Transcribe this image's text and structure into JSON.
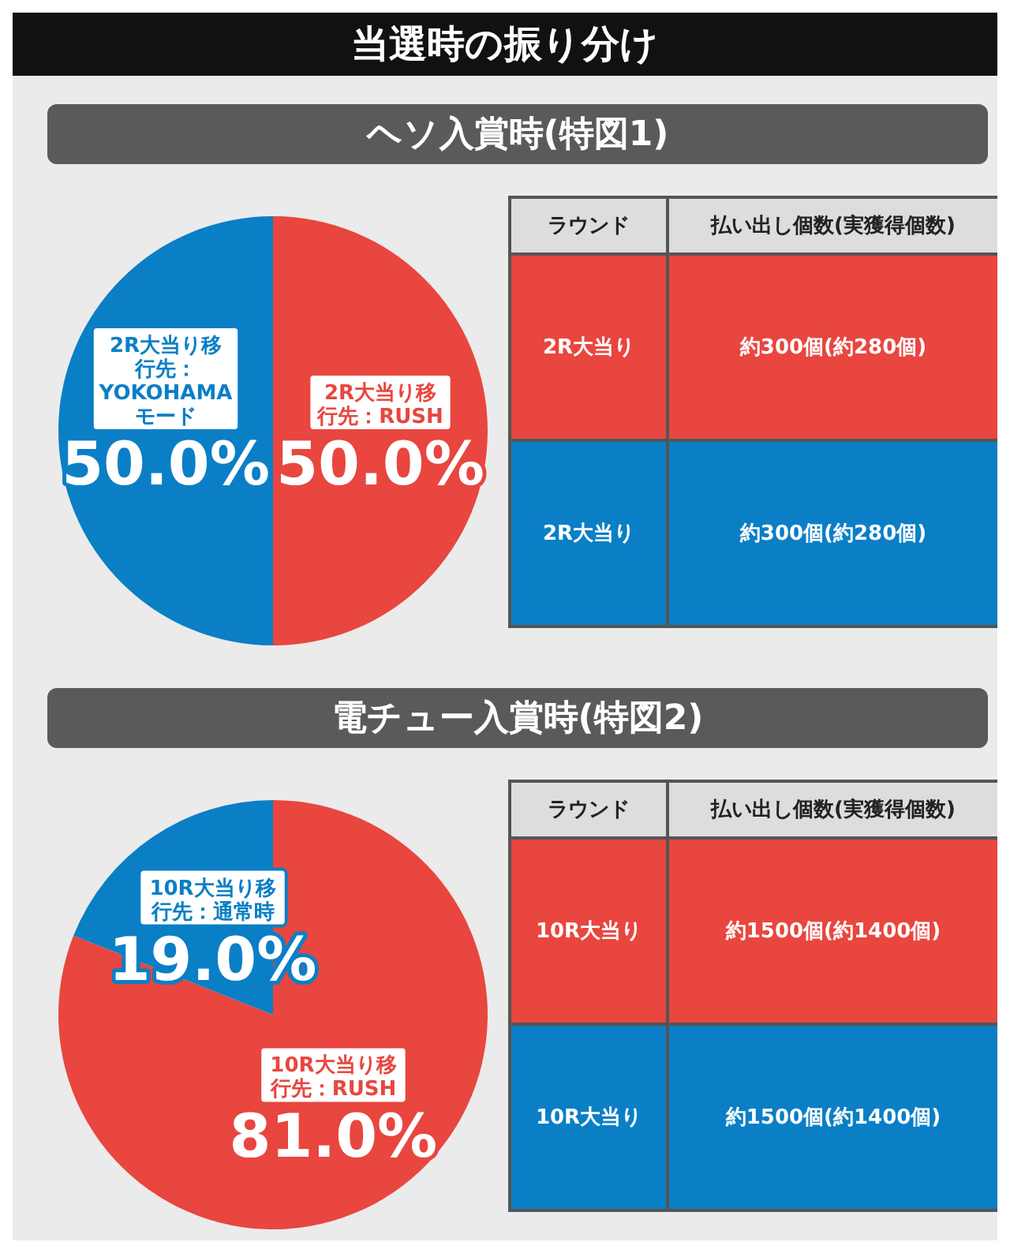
{
  "chart_data": [
    {
      "type": "pie",
      "title": "当選時の振り分け",
      "subtitle": "ヘソ入賞時(特図1)",
      "categories": [
        "2R大当り移行先：RUSH",
        "2R大当り移行先：YOKOHAMAモード"
      ],
      "values": [
        50,
        50
      ],
      "colors": [
        "#e8463f",
        "#0a7fc6"
      ],
      "value_labels": [
        "50.0%",
        "50.0%"
      ],
      "annotations": [
        "ラウンド",
        "払い出し個数(実獲得個数)",
        "2R大当り",
        "約300個(約280個)",
        "2R大当り",
        "約300個(約280個)"
      ]
    },
    {
      "type": "pie",
      "subtitle": "電チュー入賞時(特図2)",
      "categories": [
        "10R大当り移行先：RUSH",
        "10R大当り移行先：通常時"
      ],
      "values": [
        81,
        19
      ],
      "colors": [
        "#e8463f",
        "#0a7fc6"
      ],
      "value_labels": [
        "81.0%",
        "19.0%"
      ],
      "annotations": [
        "ラウンド",
        "払い出し個数(実獲得個数)",
        "10R大当り",
        "約1500個(約1400個)",
        "10R大当り",
        "約1500個(約1400個)"
      ]
    }
  ]
}
